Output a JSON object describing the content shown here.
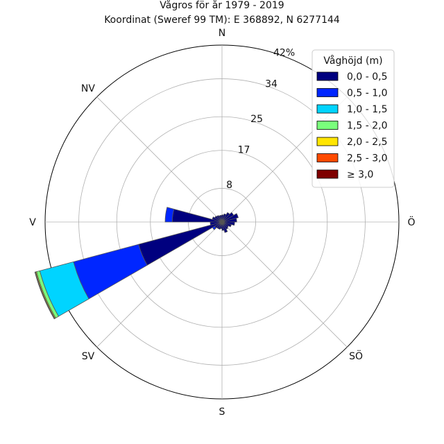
{
  "chart_data": {
    "type": "windrose",
    "title": "Vågros för år 1979 - 2019",
    "subtitle": "Koordinat (Sweref 99 TM): E 368892, N 6277144",
    "direction_labels": [
      "N",
      "NV",
      "V",
      "SV",
      "S",
      "SÖ",
      "Ö"
    ],
    "radial_ticks": [
      {
        "value": 8,
        "label": "8"
      },
      {
        "value": 17,
        "label": "17"
      },
      {
        "value": 25,
        "label": "25"
      },
      {
        "value": 34,
        "label": "34"
      },
      {
        "value": 42,
        "label": "42%"
      }
    ],
    "rmax": 42,
    "legend": {
      "title": "Våghöjd (m)",
      "position": "top-right",
      "items": [
        {
          "label": "0,0 - 0,5",
          "color": "#00007f"
        },
        {
          "label": "0,5 - 1,0",
          "color": "#0026ff"
        },
        {
          "label": "1,0 - 1,5",
          "color": "#00d4ff"
        },
        {
          "label": "1,5 - 2,0",
          "color": "#7aff7c"
        },
        {
          "label": "2,0 - 2,5",
          "color": "#ffe500"
        },
        {
          "label": "2,5 - 3,0",
          "color": "#ff4a00"
        },
        {
          "label": "≥ 3,0",
          "color": "#7f0000"
        }
      ]
    },
    "sector_width_deg": 15,
    "series_note": "values are cumulative radial extents (%) per height class",
    "sectors": [
      {
        "direction_deg": 247.5,
        "cumulative": [
          20.5,
          36.5,
          44.8,
          45.6,
          45.8,
          45.9,
          46.0
        ]
      },
      {
        "direction_deg": 277.5,
        "cumulative": [
          11.8,
          13.5
        ]
      },
      {
        "direction_deg": 232.5,
        "cumulative": [
          2.0,
          2.6
        ]
      },
      {
        "direction_deg": 67.5,
        "cumulative": [
          4.0
        ]
      },
      {
        "direction_deg": 82.5,
        "cumulative": [
          3.5
        ]
      },
      {
        "direction_deg": 97.5,
        "cumulative": [
          3.0
        ]
      },
      {
        "direction_deg": 112.5,
        "cumulative": [
          2.3
        ]
      },
      {
        "direction_deg": 127.5,
        "cumulative": [
          1.8
        ]
      },
      {
        "direction_deg": 142.5,
        "cumulative": [
          2.0
        ]
      },
      {
        "direction_deg": 157.5,
        "cumulative": [
          2.6
        ]
      },
      {
        "direction_deg": 172.5,
        "cumulative": [
          2.0
        ]
      },
      {
        "direction_deg": 187.5,
        "cumulative": [
          1.6
        ]
      },
      {
        "direction_deg": 202.5,
        "cumulative": [
          1.8
        ]
      },
      {
        "direction_deg": 217.5,
        "cumulative": [
          1.8
        ]
      },
      {
        "direction_deg": 262.5,
        "cumulative": [
          2.8
        ]
      },
      {
        "direction_deg": 292.5,
        "cumulative": [
          2.4
        ]
      },
      {
        "direction_deg": 307.5,
        "cumulative": [
          2.0
        ]
      },
      {
        "direction_deg": 322.5,
        "cumulative": [
          1.8
        ]
      },
      {
        "direction_deg": 337.5,
        "cumulative": [
          1.6
        ]
      },
      {
        "direction_deg": 352.5,
        "cumulative": [
          1.6
        ]
      },
      {
        "direction_deg": 7.5,
        "cumulative": [
          1.7
        ]
      },
      {
        "direction_deg": 22.5,
        "cumulative": [
          2.0
        ]
      },
      {
        "direction_deg": 37.5,
        "cumulative": [
          2.6
        ]
      },
      {
        "direction_deg": 52.5,
        "cumulative": [
          3.2
        ]
      }
    ]
  }
}
